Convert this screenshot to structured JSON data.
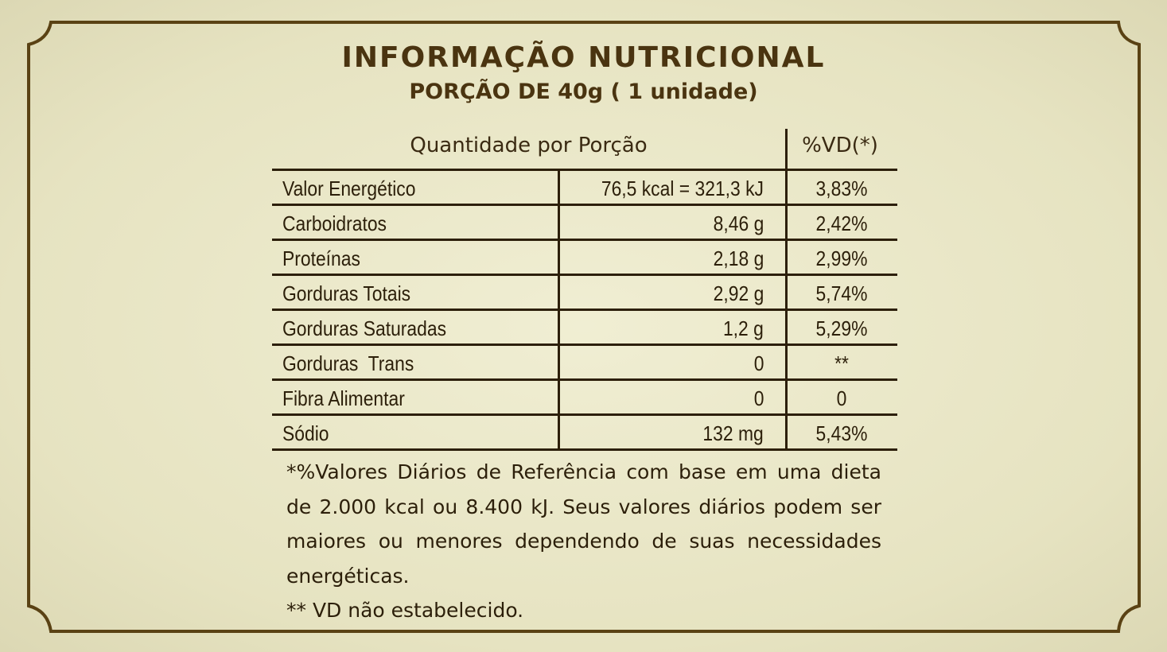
{
  "title": "INFORMAÇÃO NUTRICIONAL",
  "subtitle": "PORÇÃO DE 40g ( 1 unidade)",
  "table": {
    "header_quantity": "Quantidade por Porção",
    "header_vd": "%VD(*)",
    "rows": [
      {
        "name": "Valor Energético",
        "qty": "76,5 kcal = 321,3 kJ",
        "vd": "3,83%"
      },
      {
        "name": "Carboidratos",
        "qty": "8,46 g",
        "vd": "2,42%"
      },
      {
        "name": "Proteínas",
        "qty": "2,18 g",
        "vd": "2,99%"
      },
      {
        "name": "Gorduras Totais",
        "qty": "2,92 g",
        "vd": "5,74%"
      },
      {
        "name": "Gorduras Saturadas",
        "qty": "1,2 g",
        "vd": "5,29%"
      },
      {
        "name": "Gorduras  Trans",
        "qty": "0",
        "vd": "**"
      },
      {
        "name": "Fibra Alimentar",
        "qty": "0",
        "vd": "0"
      },
      {
        "name": "Sódio",
        "qty": "132 mg",
        "vd": "5,43%"
      }
    ]
  },
  "footnote": {
    "reference": "*%Valores Diários de Referência com base em uma dieta de 2.000 kcal ou 8.400 kJ. Seus valores diários podem ser maiores ou menores dependendo de suas necessidades energéticas.",
    "not_established": "** VD não estabelecido."
  },
  "colors": {
    "background": "#ebe8c8",
    "border": "#5a4214",
    "text": "#3a2a12"
  }
}
